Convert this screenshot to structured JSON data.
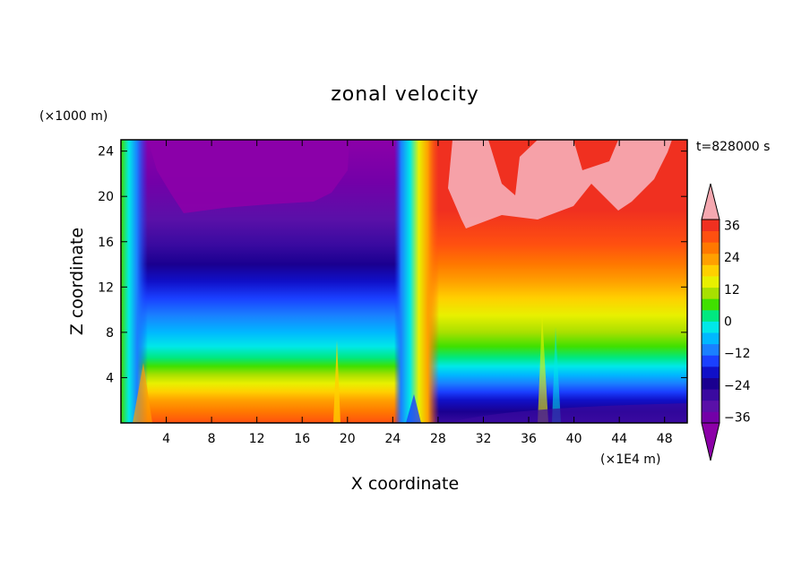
{
  "chart_data": {
    "type": "heatmap",
    "title": "zonal velocity",
    "xlabel": "X coordinate",
    "ylabel": "Z coordinate",
    "x_unit": "(×1E4 m)",
    "z_unit": "(×1000 m)",
    "time_label": "t=828000 s",
    "xlim": [
      0,
      50
    ],
    "zlim": [
      0,
      25
    ],
    "x_ticks": [
      4,
      8,
      12,
      16,
      20,
      24,
      28,
      32,
      36,
      40,
      44,
      48
    ],
    "x_tick_labels": [
      "4",
      "8",
      "12",
      "16",
      "20",
      "24",
      "28",
      "32",
      "36",
      "40",
      "44",
      "48"
    ],
    "z_ticks": [
      4,
      8,
      12,
      16,
      20,
      24
    ],
    "z_tick_labels": [
      "4",
      "8",
      "12",
      "16",
      "20",
      "24"
    ],
    "colorbar": {
      "levels": [
        -36,
        -32,
        -28,
        -24,
        -20,
        -16,
        -12,
        -8,
        -4,
        0,
        4,
        8,
        12,
        16,
        20,
        24,
        28,
        32,
        36
      ],
      "tick_values": [
        -36,
        -24,
        -12,
        0,
        12,
        24,
        36
      ],
      "tick_labels": [
        "−36",
        "−24",
        "−12",
        "0",
        "12",
        "24",
        "36"
      ],
      "under_color": "#8c00a8",
      "over_color": "#f5a8b0",
      "colors": [
        "#7300a8",
        "#5a10a8",
        "#3a0aa0",
        "#1a0090",
        "#1010c8",
        "#1a40ff",
        "#1a80ff",
        "#00b8ff",
        "#00e8e8",
        "#00e880",
        "#40e000",
        "#a8e000",
        "#e8f000",
        "#ffd000",
        "#ffa000",
        "#ff7800",
        "#ff5010",
        "#f03020"
      ]
    }
  }
}
